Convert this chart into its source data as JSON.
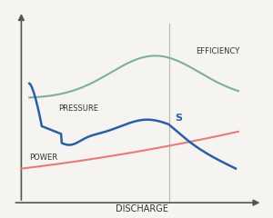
{
  "title": "",
  "xlabel": "DISCHARGE",
  "efficiency_label": "EFFICIENCY",
  "pressure_label": "PRESSURE",
  "power_label": "POWER",
  "s_label": "S",
  "bg_color": "#f5f4f0",
  "efficiency_color": "#7fada0",
  "pressure_color": "#2a5fa5",
  "power_color": "#e87a7a",
  "vline_color": "#aaaaaa",
  "axes_color": "#555555",
  "text_color": "#333333"
}
